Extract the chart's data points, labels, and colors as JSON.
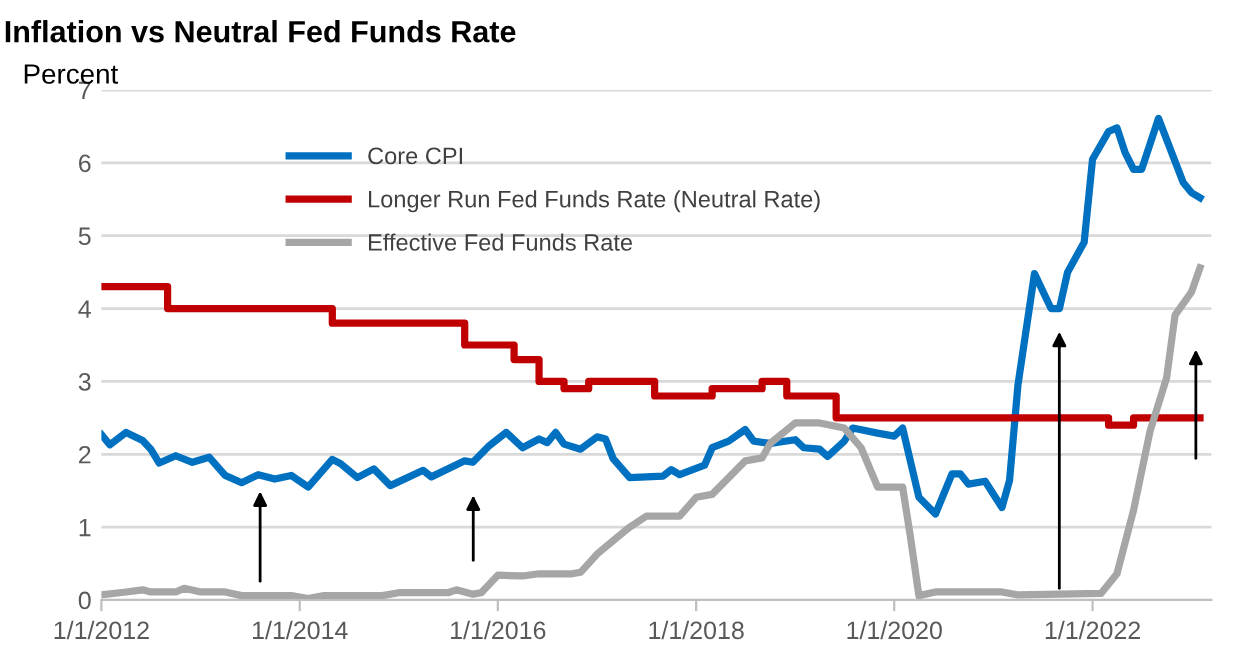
{
  "chart_data": {
    "type": "line",
    "title": "Inflation vs Neutral Fed Funds Rate",
    "ylabel": "Percent",
    "xlim": [
      "2012-01-01",
      "2023-03-15"
    ],
    "xticks": [
      {
        "value": "2012-01-01",
        "label": "1/1/2012"
      },
      {
        "value": "2014-01-01",
        "label": "1/1/2014"
      },
      {
        "value": "2016-01-01",
        "label": "1/1/2016"
      },
      {
        "value": "2018-01-01",
        "label": "1/1/2018"
      },
      {
        "value": "2020-01-01",
        "label": "1/1/2020"
      },
      {
        "value": "2022-01-01",
        "label": "1/1/2022"
      }
    ],
    "ylim": [
      0,
      7
    ],
    "yticks": [
      0,
      1,
      2,
      3,
      4,
      5,
      6,
      7
    ],
    "grid": "y",
    "legend": "top left",
    "marker": "none",
    "line_style": "solid",
    "series": [
      {
        "name": "Core CPI",
        "color": "#0070c0",
        "x": [
          "2012-01",
          "2012-02",
          "2012-04",
          "2012-06",
          "2012-07",
          "2012-08",
          "2012-10",
          "2012-12",
          "2013-02",
          "2013-04",
          "2013-06",
          "2013-08",
          "2013-10",
          "2013-12",
          "2014-02",
          "2014-05",
          "2014-06",
          "2014-08",
          "2014-10",
          "2014-12",
          "2015-04",
          "2015-05",
          "2015-09",
          "2015-10",
          "2015-12",
          "2016-02",
          "2016-04",
          "2016-06",
          "2016-07",
          "2016-08",
          "2016-09",
          "2016-11",
          "2017-01",
          "2017-02",
          "2017-03",
          "2017-05",
          "2017-09",
          "2017-10",
          "2017-11",
          "2018-02",
          "2018-03",
          "2018-05",
          "2018-07",
          "2018-08",
          "2018-10",
          "2019-01",
          "2019-02",
          "2019-04",
          "2019-05",
          "2019-07",
          "2019-08",
          "2019-11",
          "2020-01",
          "2020-02",
          "2020-04",
          "2020-06",
          "2020-08",
          "2020-09",
          "2020-10",
          "2020-12",
          "2021-02",
          "2021-03",
          "2021-04",
          "2021-06",
          "2021-08",
          "2021-09",
          "2021-10",
          "2021-12",
          "2022-01",
          "2022-03",
          "2022-04",
          "2022-05",
          "2022-06",
          "2022-07",
          "2022-09",
          "2022-12",
          "2023-01",
          "2023-02"
        ],
        "values": [
          2.27,
          2.13,
          2.3,
          2.19,
          2.07,
          1.88,
          1.98,
          1.89,
          1.96,
          1.71,
          1.61,
          1.72,
          1.66,
          1.71,
          1.55,
          1.93,
          1.87,
          1.68,
          1.8,
          1.57,
          1.78,
          1.69,
          1.91,
          1.89,
          2.12,
          2.3,
          2.09,
          2.21,
          2.16,
          2.3,
          2.14,
          2.07,
          2.24,
          2.21,
          1.94,
          1.68,
          1.7,
          1.79,
          1.72,
          1.85,
          2.09,
          2.18,
          2.34,
          2.18,
          2.15,
          2.2,
          2.09,
          2.07,
          1.97,
          2.18,
          2.36,
          2.29,
          2.25,
          2.36,
          1.41,
          1.18,
          1.73,
          1.73,
          1.59,
          1.63,
          1.27,
          1.64,
          2.95,
          4.48,
          4.0,
          4.0,
          4.5,
          4.91,
          6.05,
          6.43,
          6.48,
          6.14,
          5.91,
          5.91,
          6.61,
          5.73,
          5.59,
          5.52
        ]
      },
      {
        "name": "Longer Run Fed Funds Rate (Neutral Rate)",
        "color": "#c00000",
        "type": "step",
        "x": [
          "2012-01",
          "2012-09",
          "2014-05",
          "2015-09",
          "2016-03",
          "2016-06",
          "2016-09",
          "2016-12",
          "2017-08",
          "2018-03",
          "2018-09",
          "2018-12",
          "2019-06",
          "2022-03",
          "2022-06",
          "2023-02"
        ],
        "values": [
          4.3,
          4.0,
          3.8,
          3.5,
          3.3,
          3.0,
          2.9,
          3.0,
          2.8,
          2.9,
          3.0,
          2.8,
          2.5,
          2.4,
          2.5,
          2.5
        ]
      },
      {
        "name": "Effective Fed Funds Rate",
        "color": "#a6a6a6",
        "x": [
          "2012-01",
          "2012-04",
          "2012-06",
          "2012-07",
          "2012-10",
          "2012-11",
          "2013-01",
          "2013-04",
          "2013-06",
          "2013-12",
          "2014-02",
          "2014-04",
          "2014-11",
          "2015-01",
          "2015-07",
          "2015-08",
          "2015-10",
          "2015-11",
          "2016-01",
          "2016-04",
          "2016-06",
          "2016-10",
          "2016-11",
          "2017-01",
          "2017-04",
          "2017-05",
          "2017-07",
          "2017-11",
          "2018-01",
          "2018-03",
          "2018-05",
          "2018-07",
          "2018-09",
          "2018-10",
          "2019-01",
          "2019-04",
          "2019-07",
          "2019-09",
          "2019-11",
          "2020-02",
          "2020-03",
          "2020-04",
          "2020-06",
          "2021-02",
          "2021-04",
          "2022-02",
          "2022-04",
          "2022-06",
          "2022-08",
          "2022-10",
          "2022-11",
          "2023-01",
          "2023-02"
        ],
        "values": [
          0.07,
          0.11,
          0.14,
          0.11,
          0.11,
          0.16,
          0.11,
          0.11,
          0.06,
          0.06,
          0.02,
          0.06,
          0.06,
          0.1,
          0.1,
          0.14,
          0.08,
          0.1,
          0.34,
          0.33,
          0.36,
          0.36,
          0.38,
          0.63,
          0.91,
          1.0,
          1.15,
          1.15,
          1.41,
          1.45,
          1.68,
          1.91,
          1.95,
          2.15,
          2.43,
          2.43,
          2.36,
          2.09,
          1.55,
          1.55,
          0.86,
          0.06,
          0.11,
          0.11,
          0.07,
          0.09,
          0.36,
          1.23,
          2.32,
          3.05,
          3.91,
          4.23,
          4.56
        ]
      }
    ]
  }
}
